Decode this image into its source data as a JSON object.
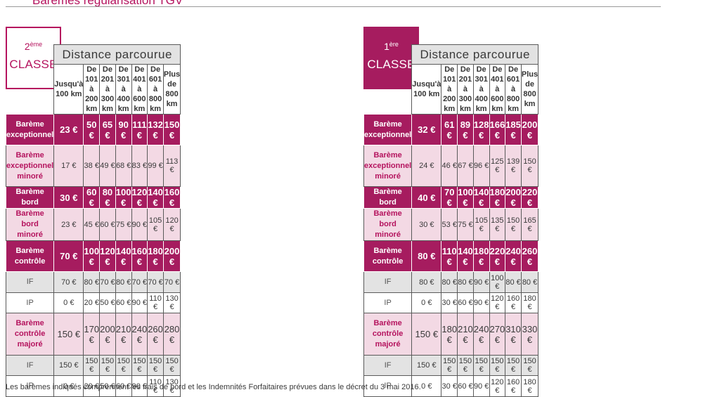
{
  "page_title": "Barèmes régularisation TGV",
  "distance_header": "Distance parcourue",
  "columns": [
    "Jusqu'à\n100 km",
    "De 101 à\n200 km",
    "De 201 à\n300 km",
    "De 301 à\n400 km",
    "De 401 à\n600 km",
    "De 601 à\n800 km",
    "Plus de\n800 km"
  ],
  "row_labels": [
    "Barème\nexceptionnel",
    "Barème\nexceptionnel\nminoré",
    "Barème bord",
    "Barème bord\nminoré",
    "Barème\ncontrôle",
    "IF",
    "IP",
    "Barème\ncontrôle\nmajoré",
    "IF",
    "IP"
  ],
  "second_class": {
    "number": "2",
    "superscript": "ème",
    "label": "CLASSE",
    "rows": [
      [
        "23 €",
        "50 €",
        "65 €",
        "90 €",
        "111 €",
        "132 €",
        "150 €"
      ],
      [
        "17 €",
        "38 €",
        "49 €",
        "68 €",
        "83 €",
        "99 €",
        "113 €"
      ],
      [
        "30 €",
        "60 €",
        "80 €",
        "100 €",
        "120 €",
        "140 €",
        "160 €"
      ],
      [
        "23 €",
        "45 €",
        "60 €",
        "75 €",
        "90 €",
        "105 €",
        "120 €"
      ],
      [
        "70 €",
        "100 €",
        "120 €",
        "140 €",
        "160 €",
        "180 €",
        "200 €"
      ],
      [
        "70 €",
        "80 €",
        "70 €",
        "80 €",
        "70 €",
        "70 €",
        "70 €"
      ],
      [
        "0 €",
        "20 €",
        "50 €",
        "60 €",
        "90 €",
        "110 €",
        "130 €"
      ],
      [
        "150 €",
        "170 €",
        "200 €",
        "210 €",
        "240 €",
        "260 €",
        "280 €"
      ],
      [
        "150 €",
        "150 €",
        "150 €",
        "150 €",
        "150 €",
        "150 €",
        "150 €"
      ],
      [
        "0 €",
        "20 €",
        "50 €",
        "60 €",
        "90 €",
        "110 €",
        "130 €"
      ]
    ]
  },
  "first_class": {
    "number": "1",
    "superscript": "ère",
    "label": "CLASSE",
    "rows": [
      [
        "32 €",
        "61 €",
        "89 €",
        "128 €",
        "166 €",
        "185 €",
        "200 €"
      ],
      [
        "24 €",
        "46 €",
        "67 €",
        "96 €",
        "125 €",
        "139 €",
        "150 €"
      ],
      [
        "40 €",
        "70 €",
        "100 €",
        "140 €",
        "180 €",
        "200 €",
        "220 €"
      ],
      [
        "30 €",
        "53 €",
        "75 €",
        "105 €",
        "135 €",
        "150 €",
        "165 €"
      ],
      [
        "80 €",
        "110 €",
        "140 €",
        "180 €",
        "220 €",
        "240 €",
        "260 €"
      ],
      [
        "80 €",
        "80 €",
        "80 €",
        "90 €",
        "100 €",
        "80 €",
        "80 €"
      ],
      [
        "0 €",
        "30 €",
        "60 €",
        "90 €",
        "120 €",
        "160 €",
        "180 €"
      ],
      [
        "150 €",
        "180 €",
        "210 €",
        "240 €",
        "270 €",
        "310 €",
        "330 €"
      ],
      [
        "150 €",
        "150 €",
        "150 €",
        "150 €",
        "150 €",
        "150 €",
        "150 €"
      ],
      [
        "0 €",
        "30 €",
        "60 €",
        "90 €",
        "120 €",
        "160 €",
        "180 €"
      ]
    ]
  },
  "footnote": "Les barèmes indiqués comprennent les frais de bord et les Indemnités Forfaitaires prévues dans le décret du 3 mai 2016.",
  "colors": {
    "accent": "#a61c5f",
    "accent_text": "#b5135e",
    "light_pink": "#f3d9e4",
    "grey_row": "#e3e3e3",
    "header_grey": "#e2e2e2"
  }
}
